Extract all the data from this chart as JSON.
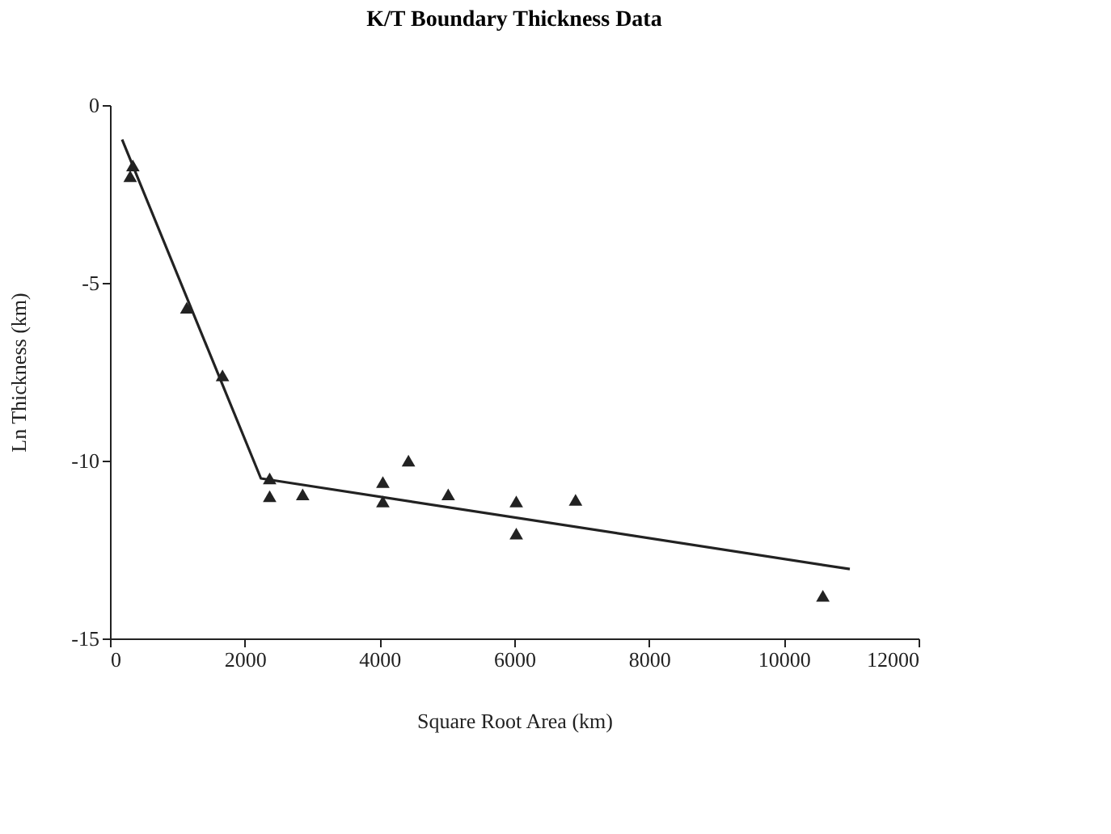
{
  "chart_data": {
    "type": "scatter",
    "title": "K/T Boundary Thickness Data",
    "xlabel": "Square Root Area (km)",
    "ylabel": "Ln Thickness (km)",
    "xlim": [
      0,
      12000
    ],
    "xticks": [
      0,
      2000,
      4000,
      6000,
      8000,
      10000,
      12000
    ],
    "ylim": [
      -15,
      0
    ],
    "yticks": [
      -15,
      -10,
      -5,
      0
    ],
    "grid": false,
    "marker": "triangle",
    "series": [
      {
        "color": "#222222",
        "x": [
          340,
          300,
          1140,
          1670,
          2370,
          2370,
          2860,
          4050,
          4050,
          4430,
          5020,
          6030,
          6030,
          6910,
          10580
        ],
        "values": [
          -1.7,
          -2.0,
          -5.7,
          -7.6,
          -10.5,
          -11.0,
          -10.95,
          -10.6,
          -11.15,
          -10.0,
          -10.95,
          -11.15,
          -12.05,
          -11.1,
          -13.8
        ]
      },
      {
        "type": "line",
        "marker": "none",
        "color": "#222222",
        "x": [
          180,
          2240,
          10980
        ],
        "values": [
          -0.97,
          -10.5,
          -13.05
        ]
      }
    ]
  }
}
